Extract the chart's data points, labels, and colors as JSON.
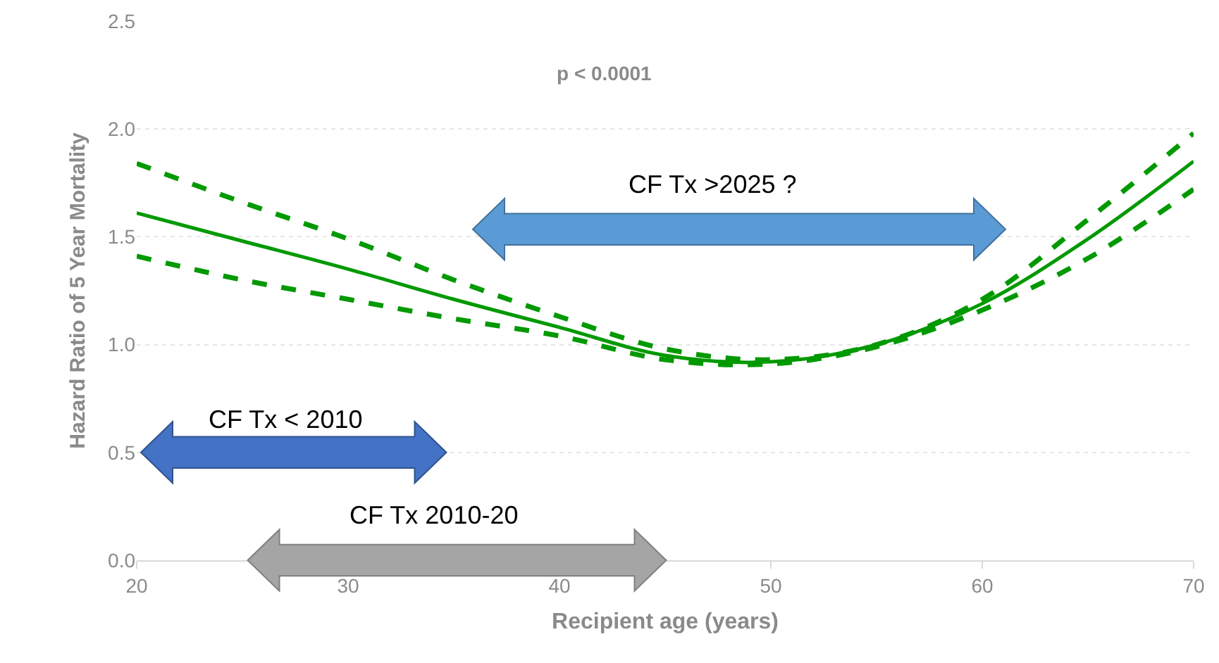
{
  "chart_data": {
    "type": "line",
    "xlabel": "Recipient age (years)",
    "ylabel": "Hazard Ratio of 5 Year Mortality",
    "x": [
      20,
      25,
      30,
      35,
      40,
      45,
      50,
      55,
      60,
      65,
      70
    ],
    "series": [
      {
        "color": "#009900",
        "line_style": "dashed",
        "values": [
          1.84,
          1.66,
          1.49,
          1.3,
          1.13,
          0.98,
          0.93,
          1.0,
          1.21,
          1.58,
          1.98
        ]
      },
      {
        "color": "#009900",
        "line_style": "solid",
        "values": [
          1.61,
          1.48,
          1.35,
          1.21,
          1.08,
          0.95,
          0.92,
          1.0,
          1.19,
          1.49,
          1.85
        ]
      },
      {
        "color": "#009900",
        "line_style": "dashed",
        "values": [
          1.41,
          1.3,
          1.21,
          1.12,
          1.04,
          0.93,
          0.91,
          0.99,
          1.16,
          1.4,
          1.72
        ]
      }
    ],
    "xlim": [
      20,
      70
    ],
    "xticks": [
      20,
      30,
      40,
      50,
      60,
      70
    ],
    "ylim": [
      0,
      2.5
    ],
    "yticks": [
      {
        "value": 0,
        "label": "0.0"
      },
      {
        "value": 0.5,
        "label": "0.5"
      },
      {
        "value": 1,
        "label": "1.0"
      },
      {
        "value": 1.5,
        "label": "1.5"
      },
      {
        "value": 2,
        "label": "2.0"
      },
      {
        "value": 2.5,
        "label": "2.5"
      }
    ],
    "grid": "y",
    "marker": "none",
    "annotations": [
      "p < 0.0001",
      "CF Tx >2025 ?",
      "CF Tx < 2010",
      "CF Tx 2010-20"
    ]
  }
}
